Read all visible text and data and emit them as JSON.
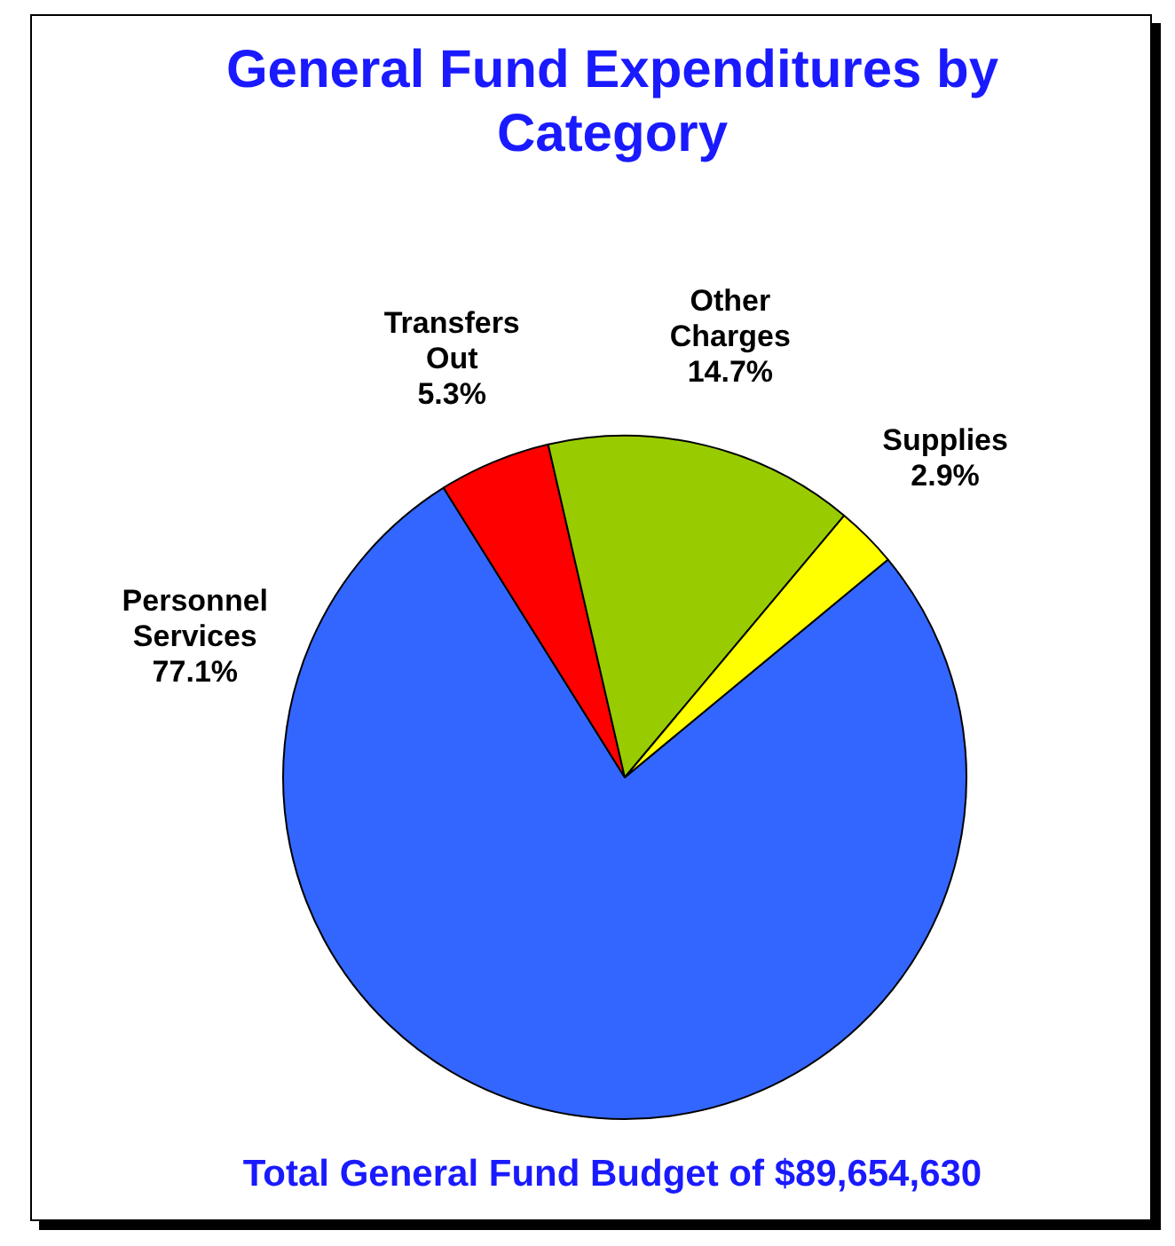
{
  "chart_data": {
    "type": "pie",
    "title": "General Fund Expenditures by Category",
    "categories": [
      "Personnel Services",
      "Transfers Out",
      "Other Charges",
      "Supplies"
    ],
    "values": [
      77.1,
      5.3,
      14.7,
      2.9
    ],
    "colors": [
      "#3366ff",
      "#ff0000",
      "#99cc00",
      "#ffff00"
    ],
    "value_labels": [
      "77.1%",
      "5.3%",
      "14.7%",
      "2.9%"
    ],
    "annotations": [
      "Total General Fund Budget of $89,654,630"
    ]
  }
}
